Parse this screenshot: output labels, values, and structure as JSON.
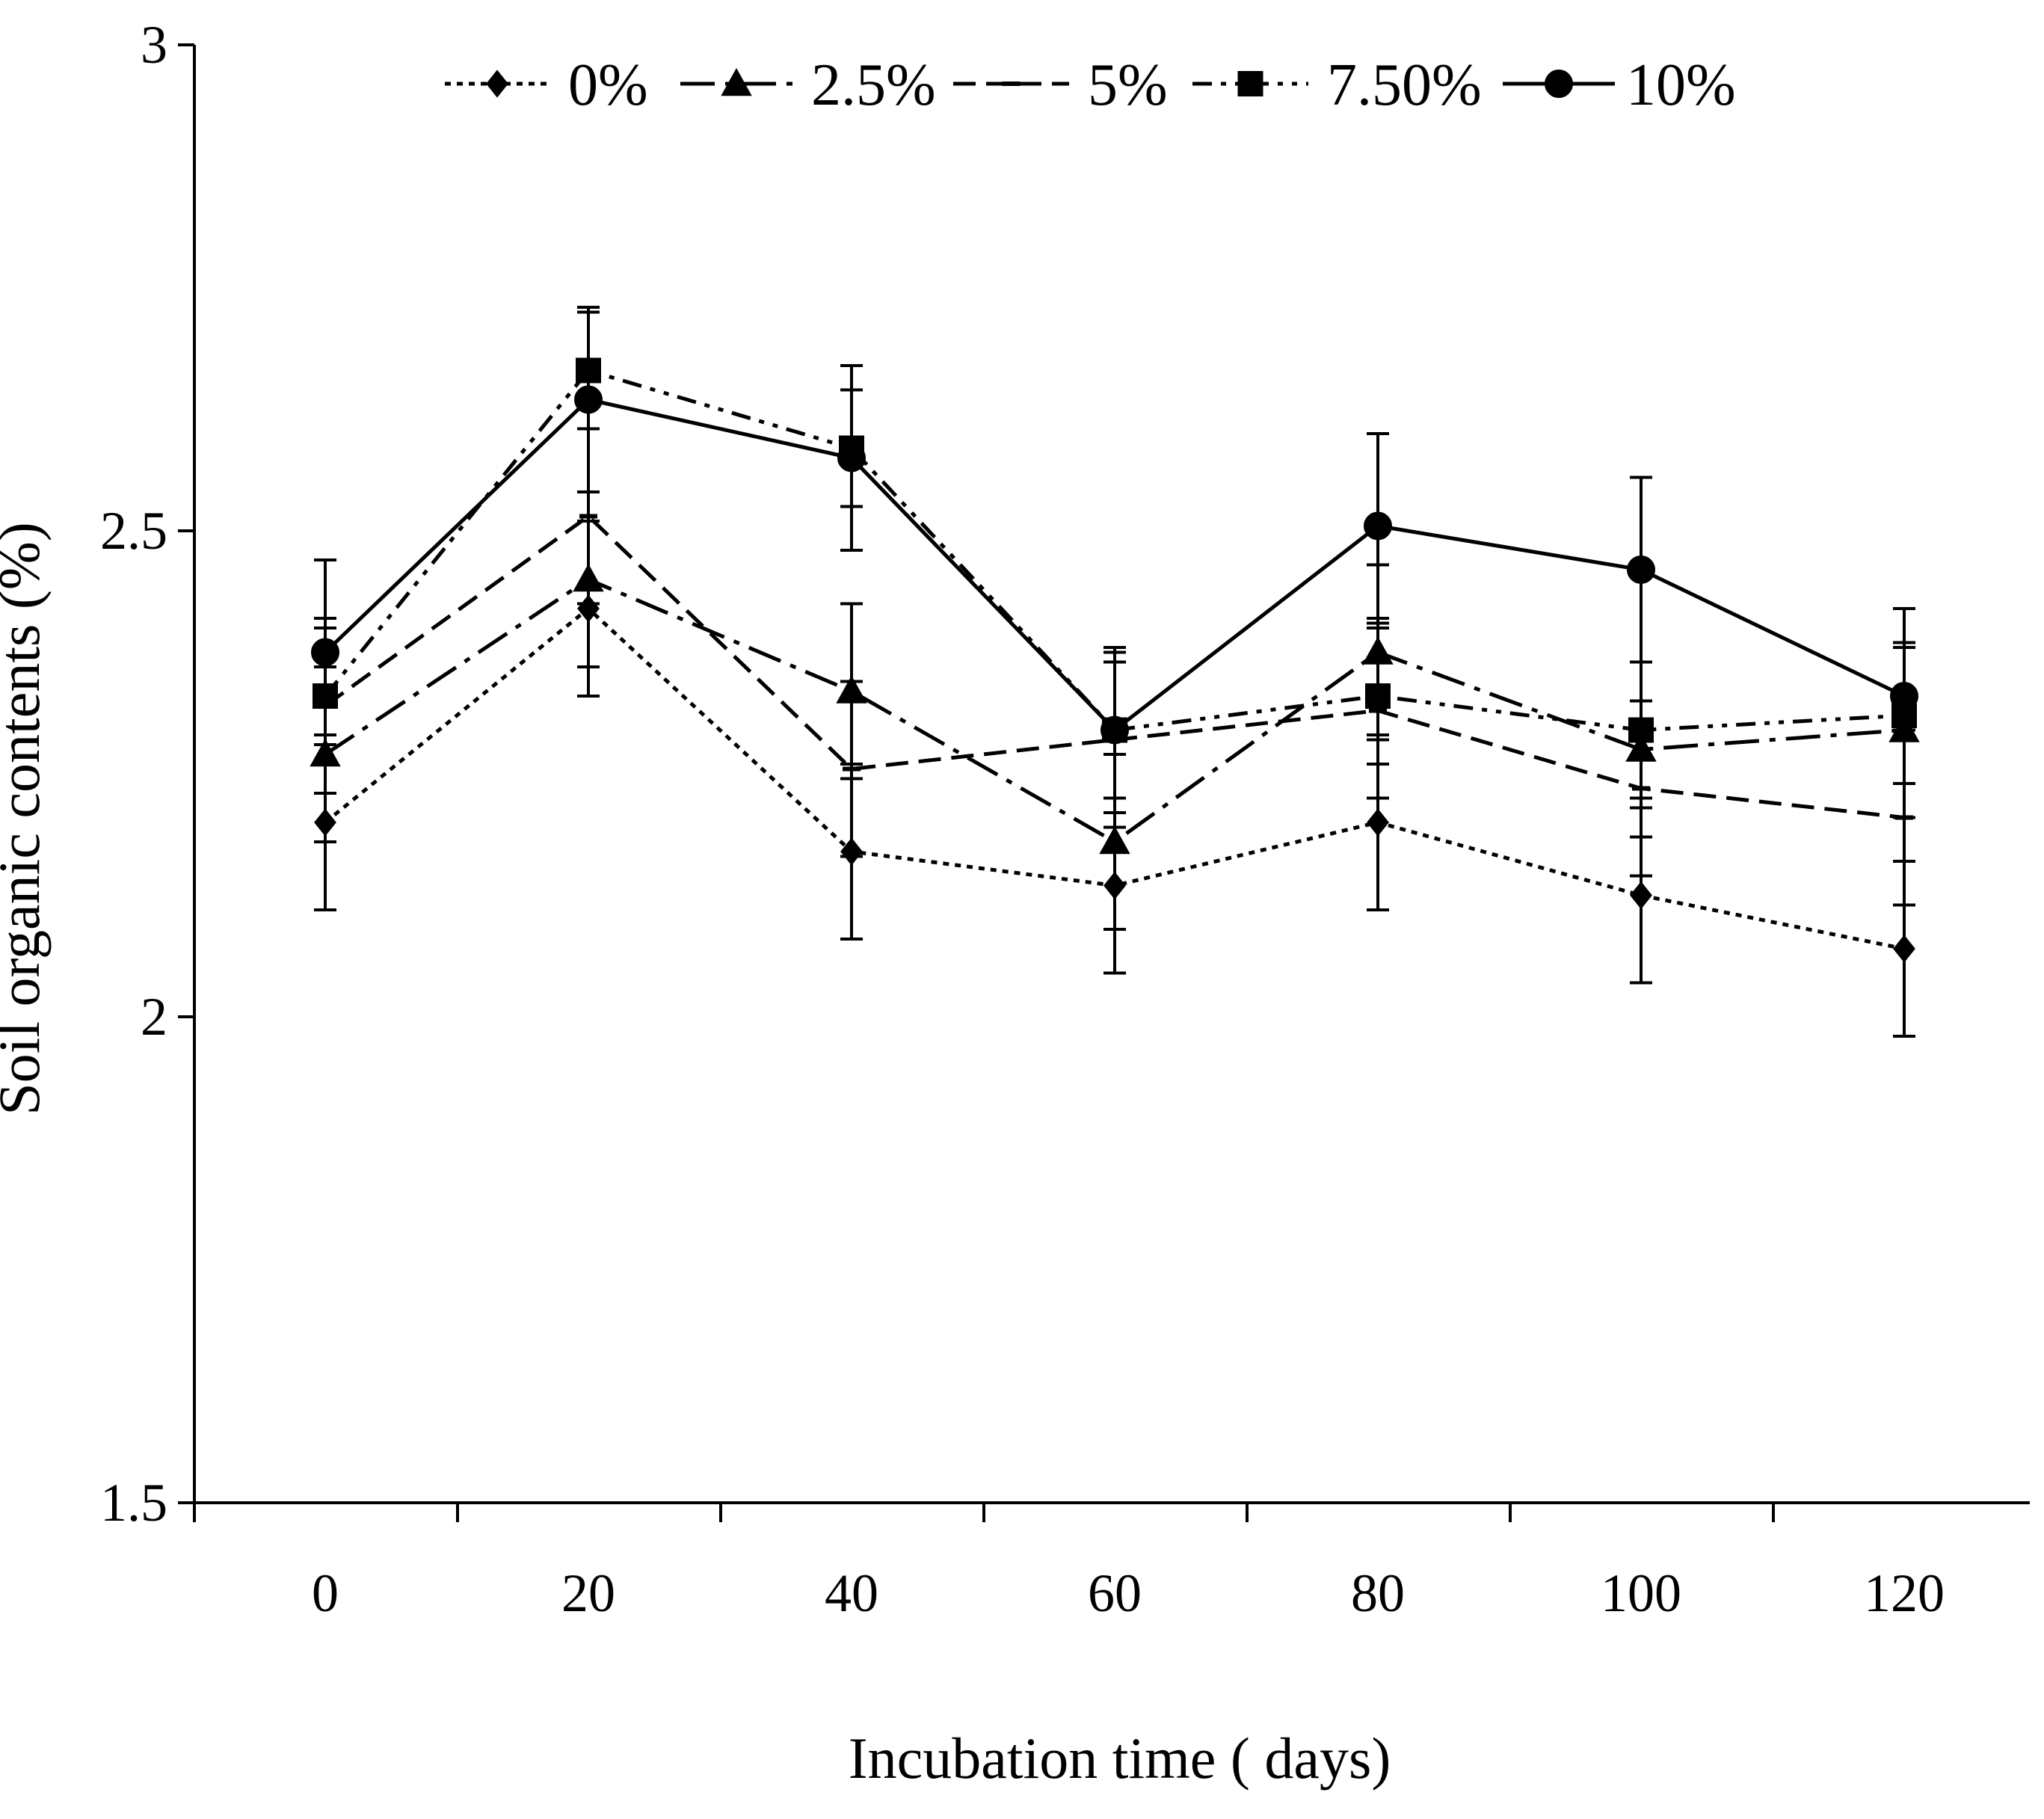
{
  "chart_data": {
    "type": "line",
    "title": "",
    "xlabel": "Incubation time  ( days)",
    "ylabel": "Soil  organic  contents  (%)",
    "ylim": [
      1.5,
      3
    ],
    "yticks": [
      "1.5",
      "2",
      "2.5",
      "3"
    ],
    "xtick_labels": [
      "0",
      "20",
      "40",
      "60",
      "80",
      "100",
      "120"
    ],
    "x": [
      0,
      20,
      40,
      60,
      80,
      100,
      120
    ],
    "grid": false,
    "legend_position": "top",
    "error_bars": true,
    "series": [
      {
        "name": "0%",
        "marker": "diamond",
        "dash": "dotted",
        "values": [
          2.2,
          2.42,
          2.17,
          2.135,
          2.2,
          2.125,
          2.07
        ],
        "errors": [
          0.09,
          0.09,
          0.09,
          0.09,
          0.09,
          0.09,
          0.09
        ]
      },
      {
        "name": "2.5%",
        "marker": "triangle",
        "dash": "long-dash-dot",
        "values": [
          2.27,
          2.45,
          2.335,
          2.18,
          2.375,
          2.275,
          2.295
        ],
        "errors": [
          0.09,
          0.09,
          0.09,
          0.09,
          0.09,
          0.09,
          0.09
        ]
      },
      {
        "name": "5%",
        "marker": "dash",
        "dash": "dashed",
        "values": [
          2.32,
          2.515,
          2.255,
          2.285,
          2.315,
          2.235,
          2.205
        ],
        "errors": [
          0.09,
          0.09,
          0.09,
          0.09,
          0.09,
          0.09,
          0.09
        ]
      },
      {
        "name": "7.50%",
        "marker": "square",
        "dash": "dash-dot-dot",
        "values": [
          2.33,
          2.665,
          2.585,
          2.295,
          2.33,
          2.295,
          2.31
        ],
        "errors": [
          0.07,
          0.06,
          0.06,
          0.07,
          0.07,
          0.07,
          0.07
        ]
      },
      {
        "name": "10%",
        "marker": "circle",
        "dash": "solid",
        "values": [
          2.375,
          2.635,
          2.575,
          2.295,
          2.505,
          2.46,
          2.33
        ],
        "errors": [
          0.095,
          0.095,
          0.095,
          0.085,
          0.095,
          0.095,
          0.09
        ]
      }
    ]
  }
}
